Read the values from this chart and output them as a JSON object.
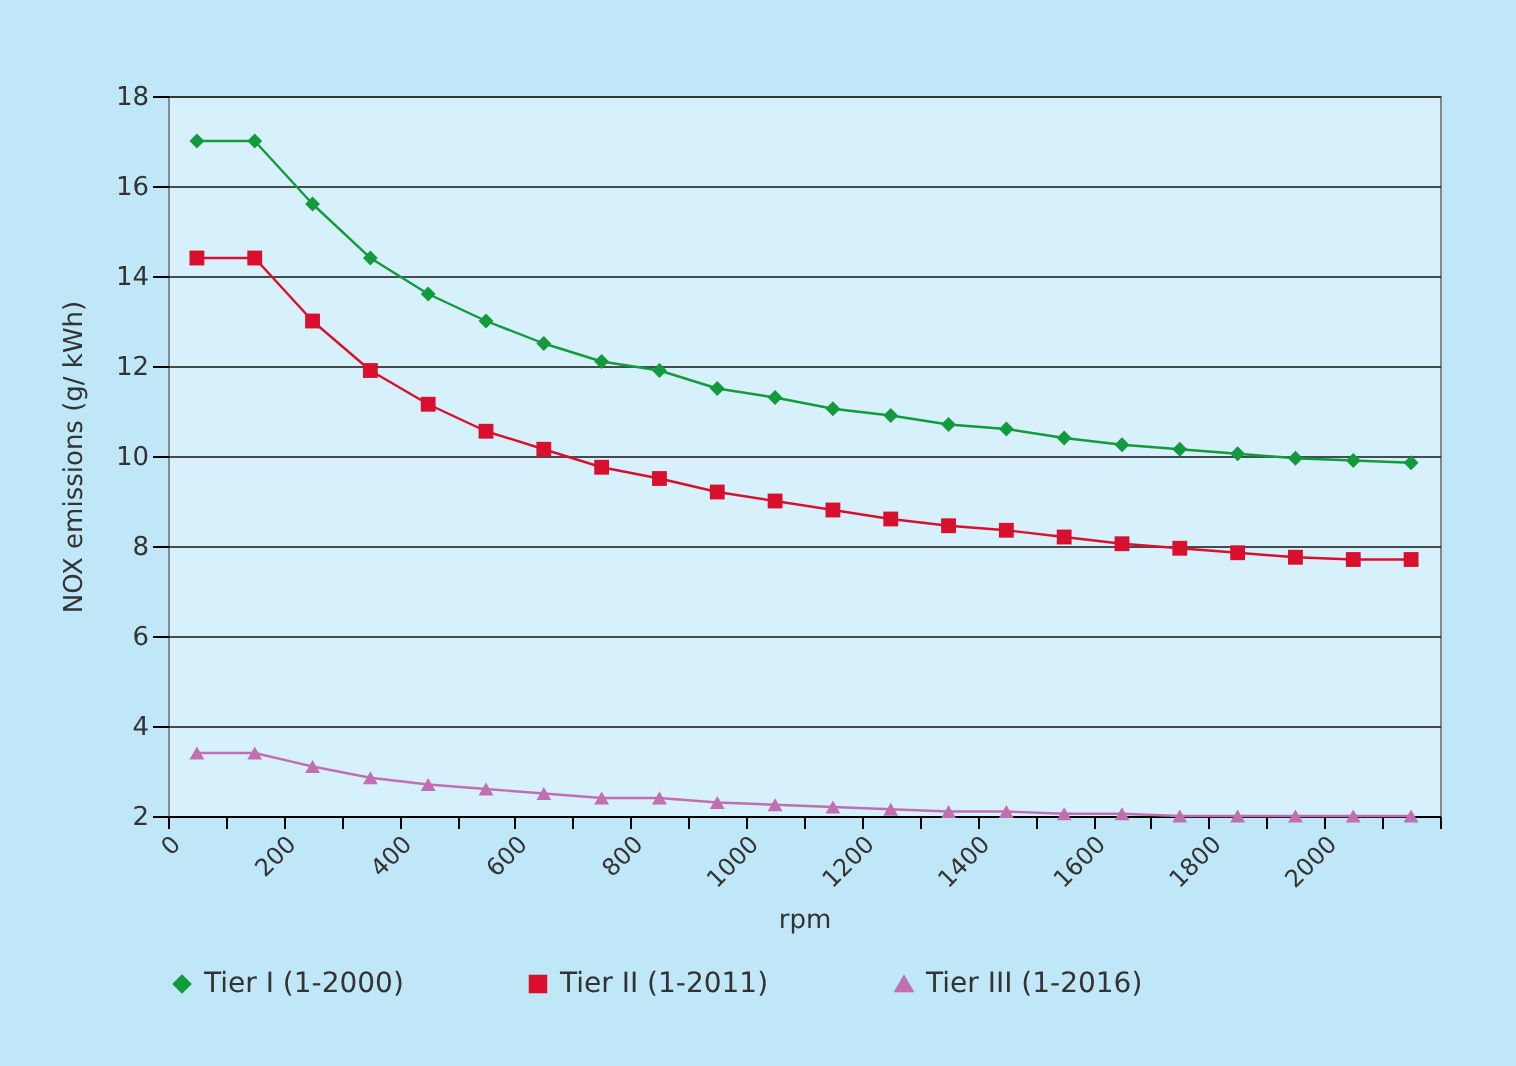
{
  "chart_data": {
    "type": "line",
    "xlabel": "rpm",
    "ylabel": "NOX emissions (g/ kWh)",
    "x": [
      50,
      150,
      250,
      350,
      450,
      550,
      650,
      750,
      850,
      950,
      1050,
      1150,
      1250,
      1350,
      1450,
      1550,
      1650,
      1750,
      1850,
      1950,
      2050,
      2150
    ],
    "series": [
      {
        "name": "Tier I (1-2000)",
        "color": "#129a3c",
        "marker": "diamond",
        "values": [
          17,
          17,
          15.6,
          14.4,
          13.6,
          13.0,
          12.5,
          12.1,
          11.9,
          11.5,
          11.3,
          11.05,
          10.9,
          10.7,
          10.6,
          10.4,
          10.25,
          10.15,
          10.05,
          9.95,
          9.9,
          9.85
        ]
      },
      {
        "name": "Tier II (1-2011)",
        "color": "#d8102e",
        "marker": "square",
        "values": [
          14.4,
          14.4,
          13.0,
          11.9,
          11.15,
          10.55,
          10.15,
          9.75,
          9.5,
          9.2,
          9.0,
          8.8,
          8.6,
          8.45,
          8.35,
          8.2,
          8.05,
          7.95,
          7.85,
          7.75,
          7.7,
          7.7
        ]
      },
      {
        "name": "Tier III (1-2016)",
        "color": "#c070b0",
        "marker": "triangle",
        "values": [
          3.4,
          3.4,
          3.1,
          2.85,
          2.7,
          2.6,
          2.5,
          2.4,
          2.4,
          2.3,
          2.25,
          2.2,
          2.15,
          2.1,
          2.1,
          2.05,
          2.05,
          2.0,
          2.0,
          2.0,
          2.0,
          2.0
        ]
      }
    ],
    "xlim": [
      0,
      2200
    ],
    "xticks": [
      0,
      {
        "value": 100,
        "label": null
      },
      200,
      {
        "value": 300,
        "label": null
      },
      400,
      {
        "value": 500,
        "label": null
      },
      600,
      {
        "value": 700,
        "label": null
      },
      800,
      {
        "value": 900,
        "label": null
      },
      1000,
      {
        "value": 1100,
        "label": null
      },
      1200,
      {
        "value": 1300,
        "label": null
      },
      1400,
      {
        "value": 1500,
        "label": null
      },
      1600,
      {
        "value": 1700,
        "label": null
      },
      1800,
      {
        "value": 1900,
        "label": null
      },
      2000,
      {
        "value": 2100,
        "label": null
      },
      {
        "value": 2200,
        "label": null
      }
    ],
    "ylim": [
      2,
      18
    ],
    "yticks": [
      2,
      4,
      6,
      8,
      10,
      12,
      14,
      16,
      18
    ],
    "grid": "y",
    "legend": "bottom",
    "line_style": "solid"
  }
}
